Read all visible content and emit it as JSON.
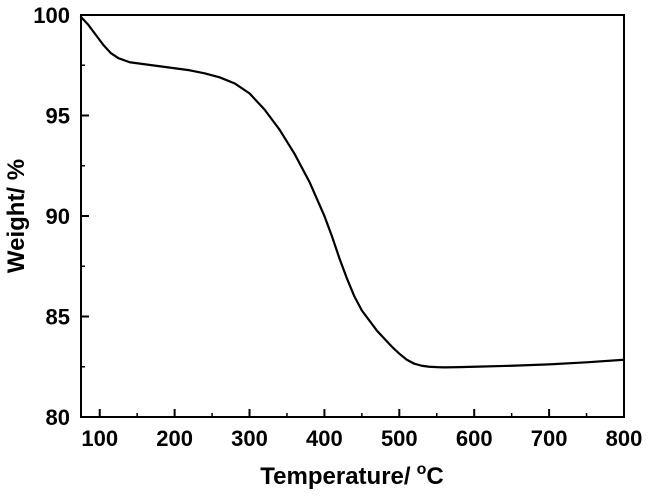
{
  "chart_data": {
    "type": "line",
    "title": "",
    "xlabel": "Temperature/",
    "xlabel_unit": "C",
    "xlabel_unit_superscript": "o",
    "ylabel": "Weight/ %",
    "xlim": [
      75,
      800
    ],
    "ylim": [
      80,
      100
    ],
    "x_ticks": [
      100,
      200,
      300,
      400,
      500,
      600,
      700,
      800
    ],
    "y_ticks": [
      80,
      85,
      90,
      95,
      100
    ],
    "grid": false,
    "line_color": "#000000",
    "series": [
      {
        "x": [
          75,
          85,
          95,
          105,
          115,
          125,
          140,
          160,
          180,
          200,
          220,
          240,
          260,
          280,
          300,
          320,
          340,
          360,
          380,
          400,
          410,
          420,
          430,
          440,
          450,
          460,
          470,
          480,
          490,
          500,
          510,
          520,
          530,
          540,
          550,
          560,
          580,
          600,
          650,
          700,
          750,
          800
        ],
        "values": [
          99.9,
          99.5,
          99.0,
          98.5,
          98.1,
          97.85,
          97.65,
          97.55,
          97.45,
          97.35,
          97.25,
          97.1,
          96.9,
          96.6,
          96.1,
          95.3,
          94.3,
          93.1,
          91.7,
          90.0,
          89.0,
          87.9,
          86.9,
          86.0,
          85.3,
          84.8,
          84.3,
          83.9,
          83.5,
          83.15,
          82.85,
          82.65,
          82.55,
          82.5,
          82.48,
          82.47,
          82.48,
          82.5,
          82.55,
          82.62,
          82.72,
          82.85
        ]
      }
    ]
  }
}
